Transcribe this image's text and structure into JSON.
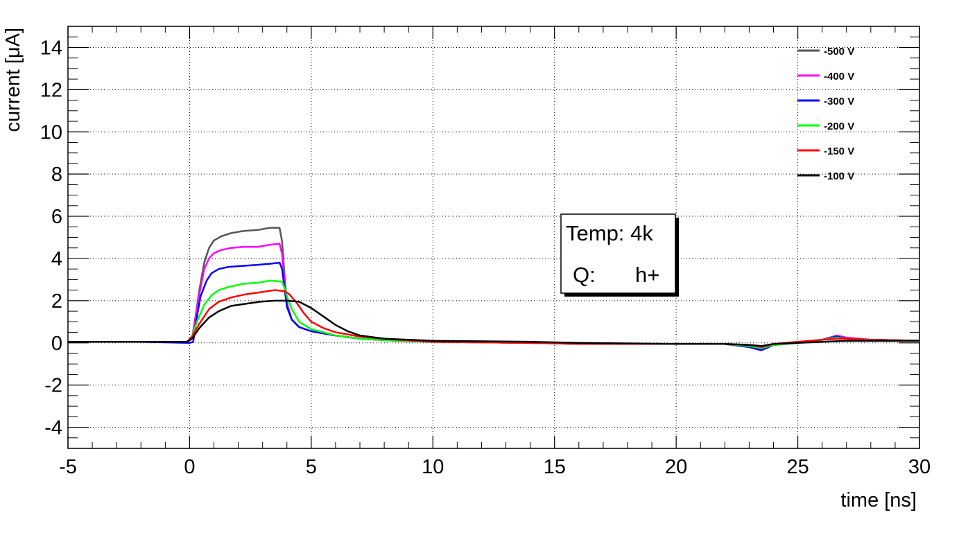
{
  "chart_data": {
    "type": "line",
    "xlabel": "time [ns]",
    "ylabel": "current [μA]",
    "xlim": [
      -5,
      30
    ],
    "ylim": [
      -5,
      15
    ],
    "x_ticks": [
      -5,
      0,
      5,
      10,
      15,
      20,
      25,
      30
    ],
    "y_ticks": [
      -4,
      -2,
      0,
      2,
      4,
      6,
      8,
      10,
      12,
      14
    ],
    "grid": true,
    "legend_position": "top-right",
    "annotation": {
      "line1": "Temp: 4k",
      "q_label": "Q:",
      "q_value": "h+"
    },
    "series": [
      {
        "name": "-500 V",
        "color": "#555555",
        "points": [
          [
            -5,
            0.05
          ],
          [
            -2,
            0.05
          ],
          [
            -0.1,
            0.05
          ],
          [
            0.1,
            0.2
          ],
          [
            0.2,
            0.9
          ],
          [
            0.4,
            2.5
          ],
          [
            0.6,
            3.8
          ],
          [
            0.8,
            4.5
          ],
          [
            1.0,
            4.85
          ],
          [
            1.3,
            5.05
          ],
          [
            1.7,
            5.2
          ],
          [
            2.2,
            5.3
          ],
          [
            2.8,
            5.35
          ],
          [
            3.3,
            5.45
          ],
          [
            3.7,
            5.45
          ],
          [
            3.8,
            4.8
          ],
          [
            3.9,
            3.2
          ],
          [
            4.0,
            1.9
          ],
          [
            4.2,
            1.1
          ],
          [
            4.5,
            0.75
          ],
          [
            5.0,
            0.55
          ],
          [
            6.0,
            0.35
          ],
          [
            7.0,
            0.2
          ],
          [
            8.5,
            0.1
          ],
          [
            10,
            0.05
          ],
          [
            14,
            0.0
          ],
          [
            16,
            -0.05
          ],
          [
            20,
            -0.05
          ],
          [
            22,
            -0.05
          ],
          [
            23,
            -0.2
          ],
          [
            23.5,
            -0.3
          ],
          [
            24,
            -0.1
          ],
          [
            25,
            0.0
          ],
          [
            26,
            0.15
          ],
          [
            26.6,
            0.3
          ],
          [
            27,
            0.2
          ],
          [
            28,
            0.15
          ],
          [
            30,
            0.1
          ]
        ]
      },
      {
        "name": "-400 V",
        "color": "#ff00ff",
        "points": [
          [
            -5,
            0.05
          ],
          [
            -2,
            0.05
          ],
          [
            -0.1,
            0.05
          ],
          [
            0.1,
            0.2
          ],
          [
            0.2,
            0.9
          ],
          [
            0.4,
            2.3
          ],
          [
            0.6,
            3.5
          ],
          [
            0.8,
            4.0
          ],
          [
            1.0,
            4.25
          ],
          [
            1.3,
            4.4
          ],
          [
            1.7,
            4.5
          ],
          [
            2.2,
            4.55
          ],
          [
            2.8,
            4.55
          ],
          [
            3.3,
            4.65
          ],
          [
            3.7,
            4.7
          ],
          [
            3.8,
            4.2
          ],
          [
            3.9,
            2.9
          ],
          [
            4.0,
            1.8
          ],
          [
            4.2,
            1.1
          ],
          [
            4.5,
            0.75
          ],
          [
            5.0,
            0.55
          ],
          [
            6.0,
            0.35
          ],
          [
            7.0,
            0.2
          ],
          [
            8.5,
            0.1
          ],
          [
            10,
            0.05
          ],
          [
            14,
            0.0
          ],
          [
            16,
            -0.05
          ],
          [
            20,
            -0.05
          ],
          [
            22,
            -0.05
          ],
          [
            23,
            -0.2
          ],
          [
            23.5,
            -0.35
          ],
          [
            24,
            -0.1
          ],
          [
            25,
            0.0
          ],
          [
            26,
            0.15
          ],
          [
            26.6,
            0.35
          ],
          [
            27,
            0.25
          ],
          [
            28,
            0.15
          ],
          [
            30,
            0.1
          ]
        ]
      },
      {
        "name": "-300 V",
        "color": "#0000ff",
        "points": [
          [
            -5,
            0.05
          ],
          [
            -2,
            0.05
          ],
          [
            0,
            0.0
          ],
          [
            0.15,
            0.05
          ],
          [
            0.25,
            0.9
          ],
          [
            0.45,
            2.2
          ],
          [
            0.7,
            2.95
          ],
          [
            0.9,
            3.3
          ],
          [
            1.2,
            3.5
          ],
          [
            1.6,
            3.6
          ],
          [
            2.2,
            3.65
          ],
          [
            2.8,
            3.7
          ],
          [
            3.3,
            3.75
          ],
          [
            3.7,
            3.8
          ],
          [
            3.8,
            3.5
          ],
          [
            3.9,
            2.6
          ],
          [
            4.0,
            1.7
          ],
          [
            4.2,
            1.1
          ],
          [
            4.5,
            0.75
          ],
          [
            5.0,
            0.55
          ],
          [
            6.0,
            0.35
          ],
          [
            7.0,
            0.2
          ],
          [
            8.5,
            0.1
          ],
          [
            10,
            0.05
          ],
          [
            14,
            0.0
          ],
          [
            16,
            -0.05
          ],
          [
            20,
            -0.05
          ],
          [
            22,
            -0.05
          ],
          [
            23,
            -0.2
          ],
          [
            23.5,
            -0.35
          ],
          [
            24,
            -0.1
          ],
          [
            25,
            0.0
          ],
          [
            26,
            0.15
          ],
          [
            26.6,
            0.3
          ],
          [
            27,
            0.2
          ],
          [
            28,
            0.15
          ],
          [
            30,
            0.1
          ]
        ]
      },
      {
        "name": "-200 V",
        "color": "#00ff00",
        "points": [
          [
            -5,
            0.05
          ],
          [
            -2,
            0.05
          ],
          [
            -0.1,
            0.05
          ],
          [
            0.1,
            0.3
          ],
          [
            0.3,
            1.0
          ],
          [
            0.6,
            1.8
          ],
          [
            0.9,
            2.25
          ],
          [
            1.2,
            2.5
          ],
          [
            1.6,
            2.65
          ],
          [
            2.2,
            2.8
          ],
          [
            2.8,
            2.85
          ],
          [
            3.3,
            2.95
          ],
          [
            3.8,
            2.9
          ],
          [
            3.9,
            2.6
          ],
          [
            4.0,
            2.2
          ],
          [
            4.2,
            1.6
          ],
          [
            4.5,
            1.0
          ],
          [
            5.0,
            0.65
          ],
          [
            6.0,
            0.35
          ],
          [
            7.0,
            0.2
          ],
          [
            8.5,
            0.1
          ],
          [
            10,
            0.05
          ],
          [
            14,
            0.0
          ],
          [
            16,
            -0.05
          ],
          [
            20,
            -0.05
          ],
          [
            22,
            -0.05
          ],
          [
            23,
            -0.15
          ],
          [
            23.5,
            -0.25
          ],
          [
            24,
            -0.1
          ],
          [
            25,
            0.0
          ],
          [
            26,
            0.15
          ],
          [
            26.6,
            0.25
          ],
          [
            27,
            0.2
          ],
          [
            28,
            0.15
          ],
          [
            30,
            0.1
          ]
        ]
      },
      {
        "name": "-150 V",
        "color": "#ff0000",
        "points": [
          [
            -5,
            0.05
          ],
          [
            -2,
            0.05
          ],
          [
            -0.1,
            0.05
          ],
          [
            0.1,
            0.3
          ],
          [
            0.4,
            0.9
          ],
          [
            0.8,
            1.6
          ],
          [
            1.2,
            1.95
          ],
          [
            1.7,
            2.15
          ],
          [
            2.3,
            2.3
          ],
          [
            2.9,
            2.4
          ],
          [
            3.5,
            2.5
          ],
          [
            3.9,
            2.45
          ],
          [
            4.1,
            2.3
          ],
          [
            4.4,
            1.9
          ],
          [
            4.7,
            1.4
          ],
          [
            5.0,
            1.0
          ],
          [
            5.5,
            0.7
          ],
          [
            6.0,
            0.5
          ],
          [
            7.0,
            0.3
          ],
          [
            8.5,
            0.15
          ],
          [
            10,
            0.05
          ],
          [
            14,
            0.0
          ],
          [
            16,
            -0.05
          ],
          [
            20,
            -0.05
          ],
          [
            22,
            -0.05
          ],
          [
            23,
            -0.1
          ],
          [
            23.5,
            -0.2
          ],
          [
            24,
            -0.05
          ],
          [
            25,
            0.05
          ],
          [
            26,
            0.15
          ],
          [
            26.6,
            0.2
          ],
          [
            27,
            0.2
          ],
          [
            28,
            0.15
          ],
          [
            30,
            0.1
          ]
        ]
      },
      {
        "name": "-100 V",
        "color": "#000000",
        "points": [
          [
            -5,
            0.05
          ],
          [
            -2,
            0.05
          ],
          [
            -0.1,
            0.05
          ],
          [
            0.1,
            0.2
          ],
          [
            0.4,
            0.7
          ],
          [
            0.8,
            1.2
          ],
          [
            1.2,
            1.5
          ],
          [
            1.7,
            1.75
          ],
          [
            2.3,
            1.85
          ],
          [
            2.9,
            1.95
          ],
          [
            3.5,
            2.0
          ],
          [
            4.0,
            2.0
          ],
          [
            4.5,
            1.95
          ],
          [
            5.0,
            1.65
          ],
          [
            5.5,
            1.25
          ],
          [
            6.0,
            0.85
          ],
          [
            6.5,
            0.55
          ],
          [
            7.0,
            0.35
          ],
          [
            8.0,
            0.2
          ],
          [
            9.0,
            0.15
          ],
          [
            10,
            0.1
          ],
          [
            14,
            0.05
          ],
          [
            16,
            0.0
          ],
          [
            20,
            -0.05
          ],
          [
            22,
            -0.05
          ],
          [
            23,
            -0.1
          ],
          [
            23.5,
            -0.15
          ],
          [
            24,
            -0.05
          ],
          [
            25,
            0.0
          ],
          [
            26,
            0.05
          ],
          [
            27,
            0.1
          ],
          [
            28,
            0.1
          ],
          [
            30,
            0.1
          ]
        ]
      }
    ]
  }
}
